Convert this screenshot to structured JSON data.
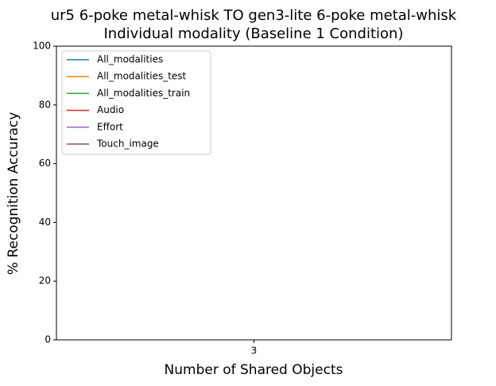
{
  "chart_data": {
    "type": "line",
    "title": [
      "ur5 6-poke metal-whisk TO gen3-lite 6-poke metal-whisk",
      "Individual modality (Baseline 1 Condition)"
    ],
    "x_label": "Number of Shared Objects",
    "y_label": "% Recognition Accuracy",
    "categories": [
      "3"
    ],
    "series": [
      {
        "name": "All_modalities",
        "color": "#1f77b4",
        "values": [
          null
        ]
      },
      {
        "name": "All_modalities_test",
        "color": "#ff7f0e",
        "values": [
          null
        ]
      },
      {
        "name": "All_modalities_train",
        "color": "#2ca02c",
        "values": [
          null
        ]
      },
      {
        "name": "Audio",
        "color": "#d62728",
        "values": [
          null
        ]
      },
      {
        "name": "Effort",
        "color": "#9467bd",
        "values": [
          null
        ]
      },
      {
        "name": "Touch_image",
        "color": "#8c564b",
        "values": [
          null
        ]
      }
    ],
    "ylim": [
      0,
      100
    ],
    "yticks": [
      0,
      20,
      40,
      60,
      80,
      100
    ],
    "legend": "upper left"
  }
}
